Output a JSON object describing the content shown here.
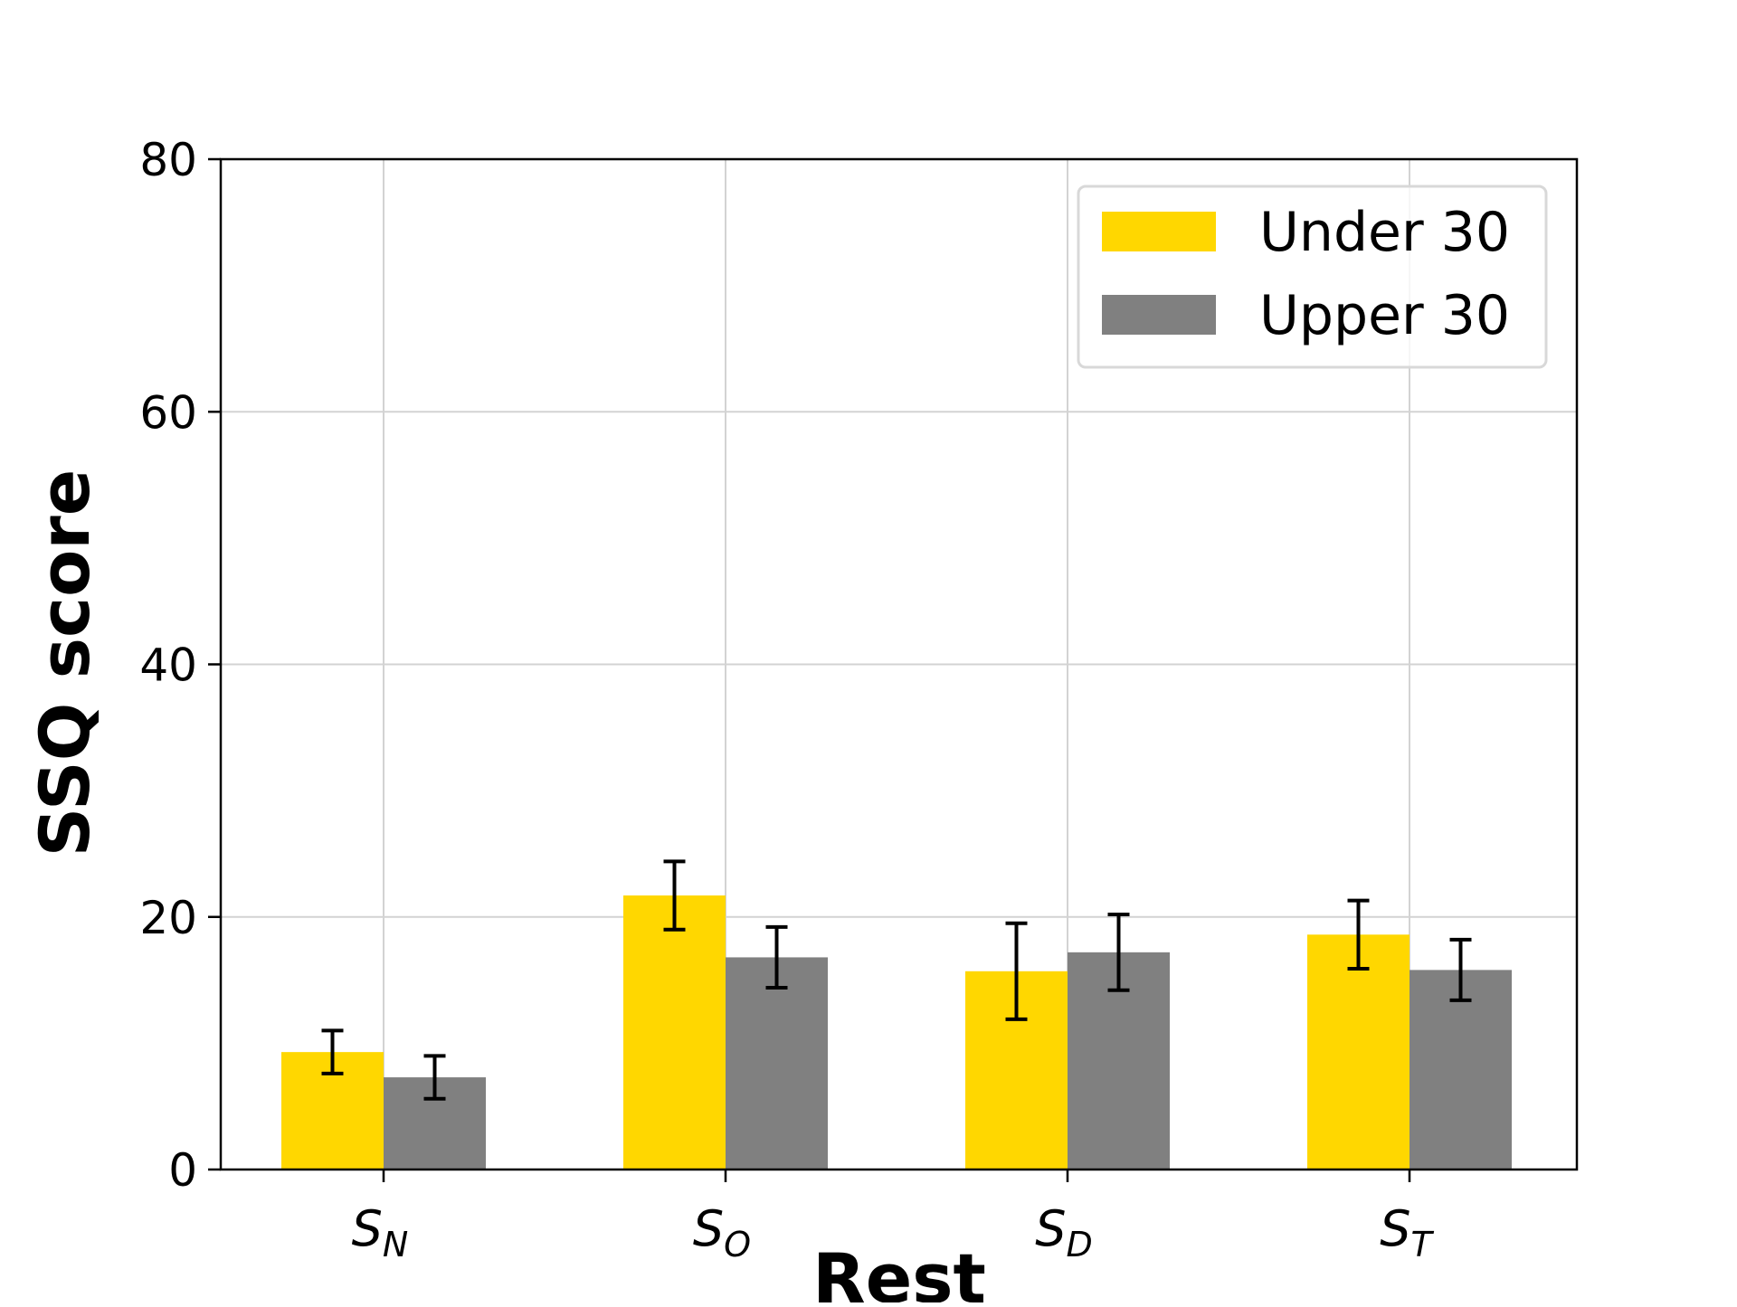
{
  "chart_data": {
    "type": "bar",
    "title": "",
    "xlabel": "Rest",
    "ylabel": "SSQ score",
    "ylim": [
      0,
      80
    ],
    "yticks": [
      0,
      20,
      40,
      60,
      80
    ],
    "grid": true,
    "legend_position": "top-right",
    "categories": [
      {
        "main": "S",
        "sub": "N"
      },
      {
        "main": "S",
        "sub": "O"
      },
      {
        "main": "S",
        "sub": "D"
      },
      {
        "main": "S",
        "sub": "T"
      }
    ],
    "series": [
      {
        "name": "Under 30",
        "color": "#FFD700",
        "values": [
          9.3,
          21.7,
          15.7,
          18.6
        ],
        "errors": [
          1.7,
          2.7,
          3.8,
          2.7
        ]
      },
      {
        "name": "Upper 30",
        "color": "#808080",
        "values": [
          7.3,
          16.8,
          17.2,
          15.8
        ],
        "errors": [
          1.7,
          2.4,
          3.0,
          2.4
        ]
      }
    ]
  }
}
